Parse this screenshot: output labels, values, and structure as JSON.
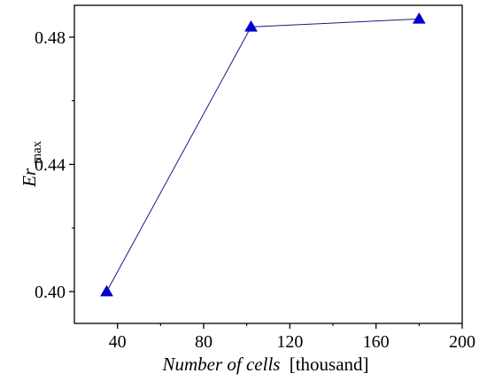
{
  "chart_data": {
    "type": "line",
    "title": "",
    "xlabel": {
      "italic_part": "Number of cells",
      "unit_part": "[thousand]"
    },
    "ylabel": {
      "base": "Er",
      "subscript": "max"
    },
    "xlim": [
      20,
      200
    ],
    "ylim": [
      0.39,
      0.49
    ],
    "xticks": [
      40,
      80,
      120,
      160,
      200
    ],
    "xtick_labels": [
      "40",
      "80",
      "120",
      "160",
      "200"
    ],
    "yticks": [
      0.4,
      0.44,
      0.48
    ],
    "ytick_labels": [
      "0.40",
      "0.44",
      "0.48"
    ],
    "y_minor_ticks": [
      0.42,
      0.46
    ],
    "grid": false,
    "legend": "none",
    "series": [
      {
        "x": [
          35,
          102,
          180
        ],
        "y": [
          0.4,
          0.4832,
          0.4857
        ],
        "marker": "triangle",
        "color": "#0000cc",
        "line_color": "#1a1a8c"
      }
    ]
  }
}
